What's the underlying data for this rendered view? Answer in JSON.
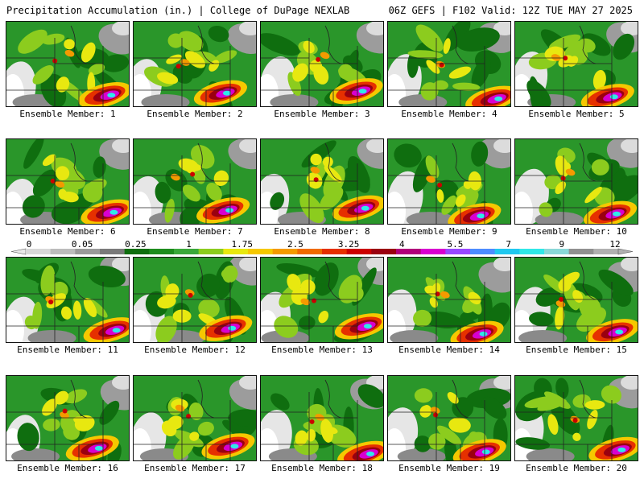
{
  "header": {
    "left": "Precipitation Accumulation (in.) | College of DuPage NEXLAB",
    "right": "06Z GEFS | F102 Valid: 12Z TUE MAY 27 2025"
  },
  "panel_caption_prefix": "Ensemble Member: ",
  "members": [
    {
      "label": "Ensemble Member: 1"
    },
    {
      "label": "Ensemble Member: 2"
    },
    {
      "label": "Ensemble Member: 3"
    },
    {
      "label": "Ensemble Member: 4"
    },
    {
      "label": "Ensemble Member: 5"
    },
    {
      "label": "Ensemble Member: 6"
    },
    {
      "label": "Ensemble Member: 7"
    },
    {
      "label": "Ensemble Member: 8"
    },
    {
      "label": "Ensemble Member: 9"
    },
    {
      "label": "Ensemble Member: 10"
    },
    {
      "label": "Ensemble Member: 11"
    },
    {
      "label": "Ensemble Member: 12"
    },
    {
      "label": "Ensemble Member: 13"
    },
    {
      "label": "Ensemble Member: 14"
    },
    {
      "label": "Ensemble Member: 15"
    },
    {
      "label": "Ensemble Member: 16"
    },
    {
      "label": "Ensemble Member: 17"
    },
    {
      "label": "Ensemble Member: 18"
    },
    {
      "label": "Ensemble Member: 19"
    },
    {
      "label": "Ensemble Member: 20"
    }
  ],
  "colorscale": {
    "tick_labels": [
      "0",
      "0.05",
      "0.25",
      "1",
      "1.75",
      "2.5",
      "3.25",
      "4",
      "5.5",
      "7",
      "9",
      "12"
    ],
    "colors": [
      "#d8d8d8",
      "#bcbcbc",
      "#9a9a9a",
      "#7a7a7a",
      "#0f6e0f",
      "#1e8c1e",
      "#3aa83a",
      "#8ccc1e",
      "#e8e810",
      "#f6c800",
      "#f49a00",
      "#f06a00",
      "#e63000",
      "#cc0000",
      "#9a0010",
      "#b0007a",
      "#d800d0",
      "#9848ff",
      "#4c8cff",
      "#20c8f0",
      "#30e8e8",
      "#8ad8d8",
      "#909090",
      "#b0b0b0"
    ]
  }
}
